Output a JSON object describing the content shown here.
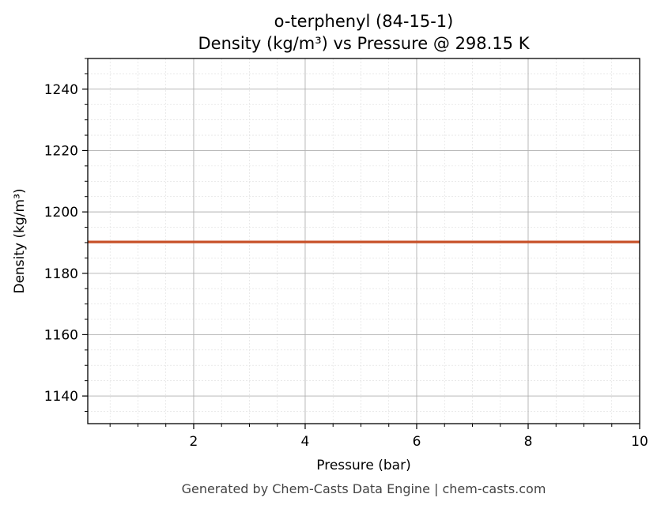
{
  "chart_data": {
    "type": "line",
    "title_line1": "o-terphenyl (84-15-1)",
    "title_line2": "Density (kg/m³) vs Pressure @ 298.15 K",
    "xlabel": "Pressure (bar)",
    "ylabel": "Density (kg/m³)",
    "xlim": [
      0.1,
      10
    ],
    "ylim": [
      1131,
      1250
    ],
    "x_ticks": [
      2,
      4,
      6,
      8,
      10
    ],
    "y_ticks": [
      1140,
      1160,
      1180,
      1200,
      1220,
      1240
    ],
    "x_minor_step": 0.5,
    "y_minor_step": 5,
    "grid": true,
    "series": [
      {
        "color": "#c8522a",
        "x": [
          0.1,
          10
        ],
        "y": [
          1190.2,
          1190.2
        ]
      }
    ]
  },
  "footer": "Generated by Chem-Casts Data Engine | chem-casts.com"
}
